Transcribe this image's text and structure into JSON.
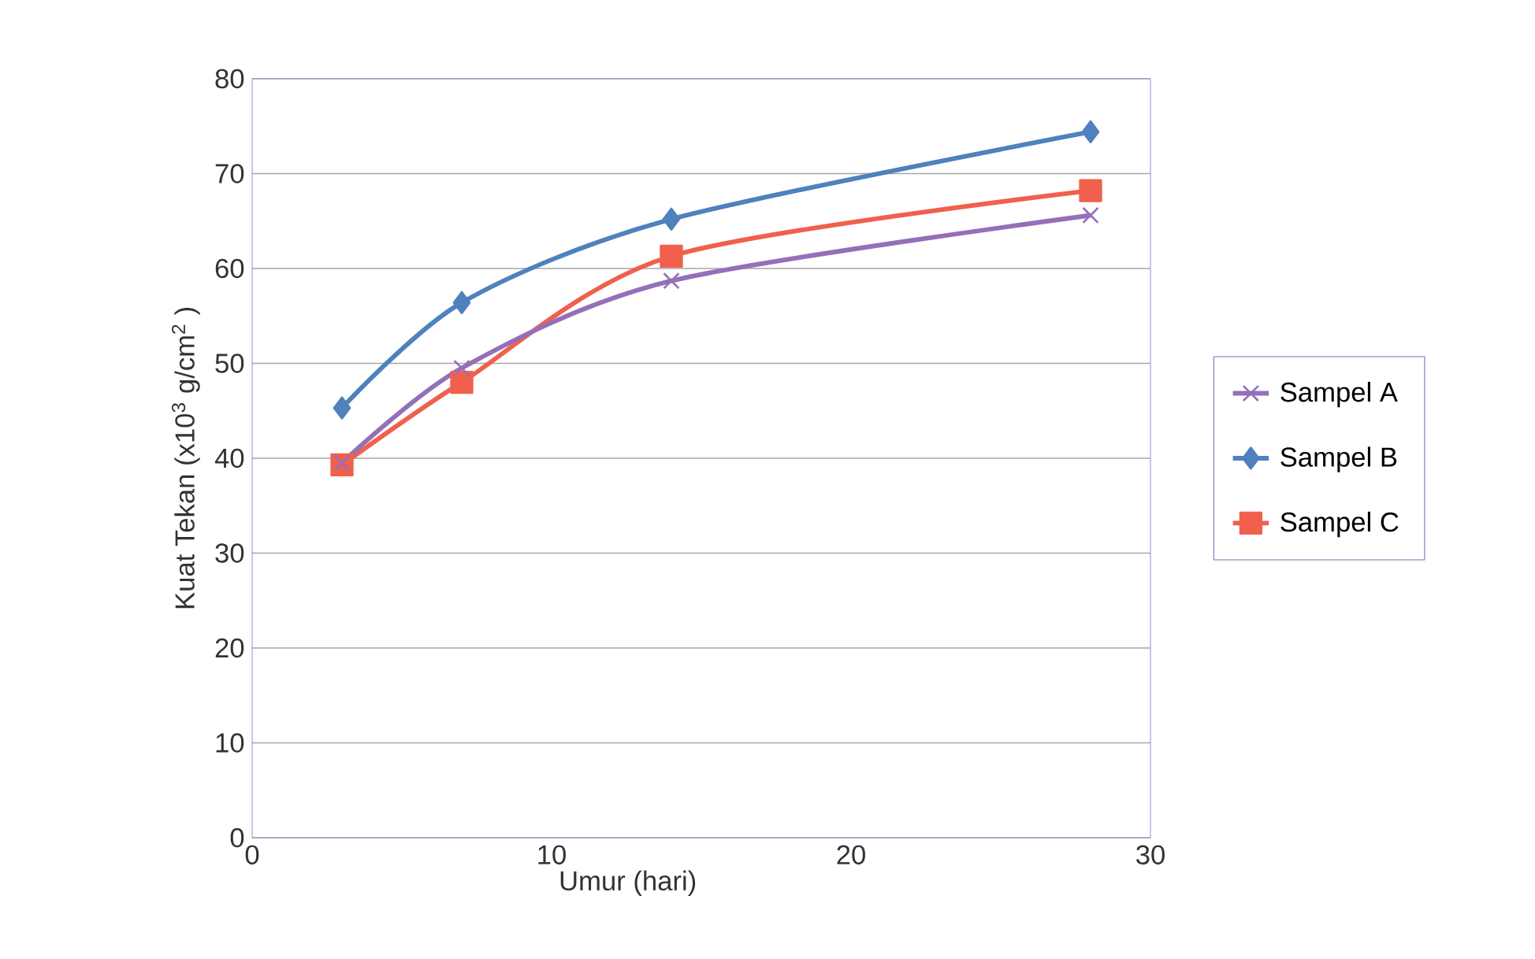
{
  "chart_data": {
    "type": "line",
    "xlabel": "Umur (hari)",
    "ylabel": "Kuat Tekan (x10$^{3}$ g/cm$^{2}$ )",
    "x": [
      3,
      7,
      14,
      28
    ],
    "series": [
      {
        "name": "Sampel A",
        "color": "#9470b8",
        "marker": "cross",
        "values": [
          39.5,
          49.5,
          58.7,
          65.6
        ]
      },
      {
        "name": "Sampel B",
        "color": "#4f81bd",
        "marker": "diamond",
        "values": [
          45.3,
          56.4,
          65.2,
          74.4
        ]
      },
      {
        "name": "Sampel C",
        "color": "#f0604d",
        "marker": "square",
        "values": [
          39.3,
          48,
          61.3,
          68.2
        ]
      }
    ],
    "xlim": [
      0,
      30
    ],
    "xticks": [
      0,
      10,
      20,
      30
    ],
    "ylim": [
      0,
      80
    ],
    "yticks": [
      0,
      10,
      20,
      30,
      40,
      50,
      60,
      70,
      80
    ],
    "grid": "y",
    "legend": "right",
    "line_style": "solid"
  }
}
